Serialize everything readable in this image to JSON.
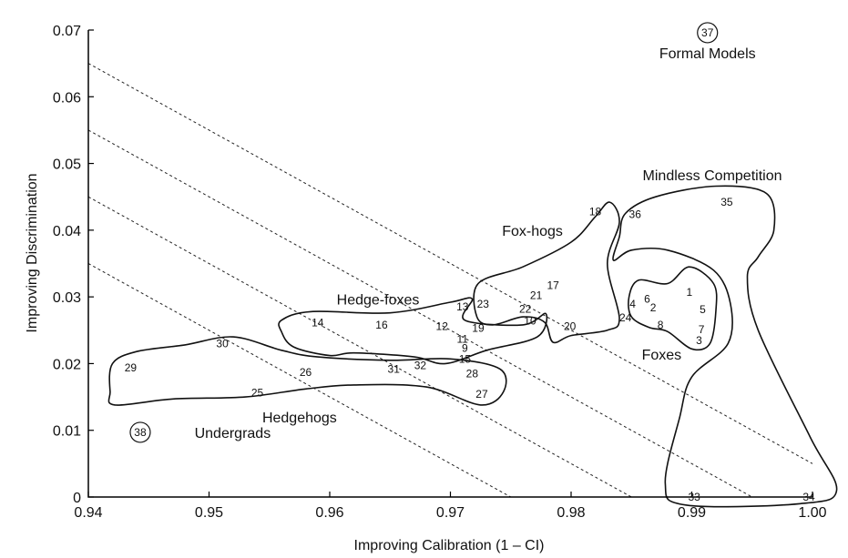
{
  "chart_data": {
    "type": "scatter",
    "xlabel": "Improving Calibration (1 – CI)",
    "ylabel": "Improving Discrimination",
    "xlim": [
      0.94,
      1.0
    ],
    "ylim": [
      0,
      0.07
    ],
    "x_ticks": [
      "0.94",
      "0.95",
      "0.96",
      "0.97",
      "0.98",
      "0.99",
      "1.00"
    ],
    "y_ticks": [
      "0",
      "0.01",
      "0.02",
      "0.03",
      "0.04",
      "0.05",
      "0.06",
      "0.07"
    ],
    "grid": false,
    "points": [
      {
        "id": "1",
        "x": 0.9898,
        "y": 0.0307
      },
      {
        "id": "2",
        "x": 0.9868,
        "y": 0.0284
      },
      {
        "id": "3",
        "x": 0.9906,
        "y": 0.0235
      },
      {
        "id": "4",
        "x": 0.9851,
        "y": 0.0289
      },
      {
        "id": "5",
        "x": 0.9909,
        "y": 0.0281
      },
      {
        "id": "6",
        "x": 0.9863,
        "y": 0.0297
      },
      {
        "id": "7",
        "x": 0.9908,
        "y": 0.0251
      },
      {
        "id": "8",
        "x": 0.9874,
        "y": 0.0258
      },
      {
        "id": "9",
        "x": 0.9712,
        "y": 0.0223
      },
      {
        "id": "10",
        "x": 0.9766,
        "y": 0.0264
      },
      {
        "id": "11",
        "x": 0.971,
        "y": 0.0237
      },
      {
        "id": "12",
        "x": 0.9693,
        "y": 0.0256
      },
      {
        "id": "13",
        "x": 0.971,
        "y": 0.0285
      },
      {
        "id": "14",
        "x": 0.959,
        "y": 0.0261
      },
      {
        "id": "15",
        "x": 0.9712,
        "y": 0.0207
      },
      {
        "id": "16",
        "x": 0.9643,
        "y": 0.0258
      },
      {
        "id": "17",
        "x": 0.9785,
        "y": 0.0317
      },
      {
        "id": "18",
        "x": 0.982,
        "y": 0.0428
      },
      {
        "id": "19",
        "x": 0.9723,
        "y": 0.0253
      },
      {
        "id": "20",
        "x": 0.9799,
        "y": 0.0256
      },
      {
        "id": "21",
        "x": 0.9771,
        "y": 0.0302
      },
      {
        "id": "22",
        "x": 0.9762,
        "y": 0.0282
      },
      {
        "id": "23",
        "x": 0.9727,
        "y": 0.0289
      },
      {
        "id": "24",
        "x": 0.9845,
        "y": 0.0269
      },
      {
        "id": "25",
        "x": 0.954,
        "y": 0.0156
      },
      {
        "id": "26",
        "x": 0.958,
        "y": 0.0187
      },
      {
        "id": "27",
        "x": 0.9726,
        "y": 0.0154
      },
      {
        "id": "28",
        "x": 0.9718,
        "y": 0.0185
      },
      {
        "id": "29",
        "x": 0.9435,
        "y": 0.0194
      },
      {
        "id": "30",
        "x": 0.9511,
        "y": 0.023
      },
      {
        "id": "31",
        "x": 0.9653,
        "y": 0.0192
      },
      {
        "id": "32",
        "x": 0.9675,
        "y": 0.0197
      },
      {
        "id": "33",
        "x": 0.9902,
        "y": 0.0
      },
      {
        "id": "34",
        "x": 0.9997,
        "y": 0.0
      },
      {
        "id": "35",
        "x": 0.9929,
        "y": 0.0442
      },
      {
        "id": "36",
        "x": 0.9853,
        "y": 0.0424
      },
      {
        "id": "37",
        "x": 0.9913,
        "y": 0.0696
      },
      {
        "id": "38",
        "x": 0.9443,
        "y": 0.0097
      }
    ],
    "groups": [
      {
        "name": "Hedgehogs",
        "x": 0.9575,
        "y": 0.012
      },
      {
        "name": "Hedge-foxes",
        "x": 0.964,
        "y": 0.0297
      },
      {
        "name": "Fox-hogs",
        "x": 0.9768,
        "y": 0.04
      },
      {
        "name": "Foxes",
        "x": 0.9875,
        "y": 0.0214
      },
      {
        "name": "Mindless Competition",
        "x": 0.9917,
        "y": 0.0483
      },
      {
        "name": "Formal Models",
        "x": 0.9913,
        "y": 0.0666
      },
      {
        "name": "Undergrads",
        "x": 0.9488,
        "y": 0.0097
      }
    ],
    "circled_points": [
      "37",
      "38"
    ],
    "iso_lines": [
      {
        "x0": 0.94,
        "y0": 0.065,
        "x1": 1.0,
        "y1": 0.005
      },
      {
        "x0": 0.94,
        "y0": 0.055,
        "x1": 0.995,
        "y1": 0.0
      },
      {
        "x0": 0.94,
        "y0": 0.045,
        "x1": 0.985,
        "y1": 0.0
      },
      {
        "x0": 0.94,
        "y0": 0.035,
        "x1": 0.975,
        "y1": 0.0
      }
    ],
    "regions": [
      {
        "name": "Hedgehogs",
        "path": [
          [
            0.9418,
            0.0158
          ],
          [
            0.9422,
            0.0138
          ],
          [
            0.947,
            0.0147
          ],
          [
            0.953,
            0.015
          ],
          [
            0.958,
            0.0162
          ],
          [
            0.962,
            0.0168
          ],
          [
            0.968,
            0.0165
          ],
          [
            0.9725,
            0.0138
          ],
          [
            0.9744,
            0.0158
          ],
          [
            0.9741,
            0.0192
          ],
          [
            0.97,
            0.0207
          ],
          [
            0.965,
            0.0205
          ],
          [
            0.959,
            0.021
          ],
          [
            0.956,
            0.022
          ],
          [
            0.952,
            0.024
          ],
          [
            0.948,
            0.0228
          ],
          [
            0.944,
            0.0218
          ],
          [
            0.942,
            0.02
          ]
        ]
      },
      {
        "name": "Hedge-foxes",
        "path": [
          [
            0.956,
            0.0265
          ],
          [
            0.9585,
            0.0278
          ],
          [
            0.965,
            0.0276
          ],
          [
            0.97,
            0.0292
          ],
          [
            0.9718,
            0.0297
          ],
          [
            0.9712,
            0.0265
          ],
          [
            0.976,
            0.0258
          ],
          [
            0.9779,
            0.0275
          ],
          [
            0.9772,
            0.024
          ],
          [
            0.973,
            0.022
          ],
          [
            0.9696,
            0.02
          ],
          [
            0.967,
            0.021
          ],
          [
            0.962,
            0.0216
          ],
          [
            0.96,
            0.0212
          ],
          [
            0.957,
            0.0225
          ],
          [
            0.956,
            0.0248
          ]
        ]
      },
      {
        "name": "Fox-hogs",
        "path": [
          [
            0.9723,
            0.032
          ],
          [
            0.976,
            0.0345
          ],
          [
            0.98,
            0.0382
          ],
          [
            0.982,
            0.042
          ],
          [
            0.9832,
            0.0442
          ],
          [
            0.984,
            0.0412
          ],
          [
            0.983,
            0.035
          ],
          [
            0.984,
            0.0268
          ],
          [
            0.983,
            0.025
          ],
          [
            0.98,
            0.0242
          ],
          [
            0.9785,
            0.0232
          ],
          [
            0.9778,
            0.0262
          ],
          [
            0.976,
            0.027
          ],
          [
            0.9735,
            0.0258
          ],
          [
            0.9722,
            0.027
          ]
        ]
      },
      {
        "name": "Mindless Competition",
        "path": [
          [
            0.9845,
            0.0425
          ],
          [
            0.987,
            0.045
          ],
          [
            0.992,
            0.0466
          ],
          [
            0.9962,
            0.0455
          ],
          [
            0.9968,
            0.04
          ],
          [
            0.9955,
            0.036
          ],
          [
            0.9946,
            0.033
          ],
          [
            0.9955,
            0.025
          ],
          [
            0.9998,
            0.009
          ],
          [
            1.002,
            0.001
          ],
          [
            0.999,
            -0.001
          ],
          [
            0.9895,
            -0.0012
          ],
          [
            0.9878,
            0.002
          ],
          [
            0.989,
            0.012
          ],
          [
            0.99,
            0.018
          ],
          [
            0.993,
            0.023
          ],
          [
            0.9932,
            0.029
          ],
          [
            0.9918,
            0.034
          ],
          [
            0.988,
            0.037
          ],
          [
            0.985,
            0.037
          ],
          [
            0.9835,
            0.0355
          ],
          [
            0.984,
            0.039
          ]
        ]
      },
      {
        "name": "Foxes",
        "path": [
          [
            0.9856,
            0.0325
          ],
          [
            0.988,
            0.032
          ],
          [
            0.9898,
            0.0345
          ],
          [
            0.9918,
            0.032
          ],
          [
            0.992,
            0.028
          ],
          [
            0.9915,
            0.023
          ],
          [
            0.99,
            0.0222
          ],
          [
            0.988,
            0.0248
          ],
          [
            0.9865,
            0.0254
          ],
          [
            0.985,
            0.027
          ],
          [
            0.9848,
            0.03
          ]
        ]
      }
    ]
  }
}
